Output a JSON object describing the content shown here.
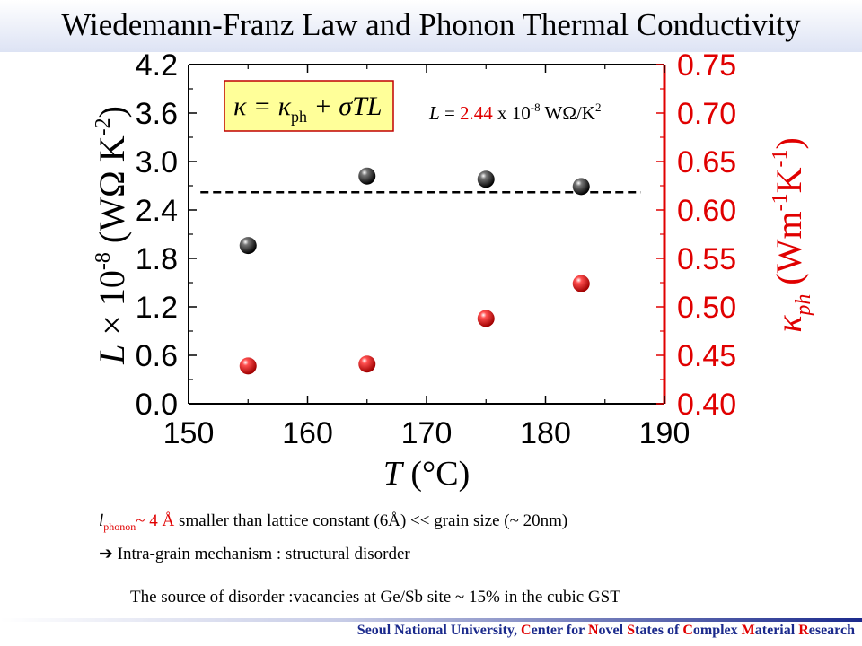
{
  "title": "Wiedemann-Franz Law and Phonon Thermal Conductivity",
  "chart_data": {
    "type": "scatter",
    "x_axis": {
      "label_symbol": "T",
      "label_unit": "(°C)",
      "min": 150,
      "max": 190,
      "ticks": [
        "150",
        "160",
        "170",
        "180",
        "190"
      ]
    },
    "y_left": {
      "label_main": "L × 10",
      "label_exp": "-8",
      "label_unit_a": " (WΩ K",
      "label_unit_exp": "-2",
      "label_unit_b": ")",
      "min": 0.0,
      "max": 4.2,
      "ticks": [
        "0.0",
        "0.6",
        "1.2",
        "1.8",
        "2.4",
        "3.0",
        "3.6",
        "4.2"
      ]
    },
    "y_right": {
      "label_main": "κ",
      "label_sub": "ph",
      "label_unit_a": " (Wm",
      "label_unit_exp1": "-1",
      "label_unit_b": "K",
      "label_unit_exp2": "-1",
      "label_unit_c": ")",
      "min": 0.4,
      "max": 0.75,
      "ticks": [
        "0.40",
        "0.45",
        "0.50",
        "0.55",
        "0.60",
        "0.65",
        "0.70",
        "0.75"
      ],
      "color": "#e00000"
    },
    "series": [
      {
        "axis": "left",
        "color": "#111111",
        "points": [
          {
            "x": 155,
            "y": 1.96
          },
          {
            "x": 165,
            "y": 2.82
          },
          {
            "x": 175,
            "y": 2.78
          },
          {
            "x": 183,
            "y": 2.69
          }
        ]
      },
      {
        "axis": "right",
        "color": "#e00000",
        "points": [
          {
            "x": 155,
            "y": 0.439
          },
          {
            "x": 165,
            "y": 0.441
          },
          {
            "x": 175,
            "y": 0.488
          },
          {
            "x": 183,
            "y": 0.524
          }
        ]
      }
    ],
    "reference_line": {
      "axis": "left",
      "y": 2.62,
      "x_from": 151,
      "x_to": 188,
      "style": "dashed"
    },
    "formula": "κ = κph + σTL",
    "annotation": {
      "prefix": "L = ",
      "value": "2.44",
      "mid": " x 10",
      "exp": "-8",
      "unit": " WΩ/K",
      "unit_exp": "2"
    }
  },
  "notes": {
    "line1_symbol": "l",
    "line1_sub": "phonon",
    "line1_value": "~ 4 Å",
    "line1_rest": " smaller than lattice constant (6Å) << grain size (~ 20nm)",
    "line2_arrow": "➔",
    "line2": "  Intra-grain mechanism : structural disorder",
    "line3": "The source of disorder :vacancies at Ge/Sb site ~ 15% in the cubic GST"
  },
  "footer": {
    "part1": "Seoul National University, ",
    "c": "C",
    "part2": "enter for ",
    "n": "N",
    "part3": "ovel ",
    "s": "S",
    "part4": "tates of ",
    "c2": "C",
    "part5": "omplex ",
    "m": "M",
    "part6": "aterial ",
    "r": "R",
    "part7": "esearch"
  }
}
